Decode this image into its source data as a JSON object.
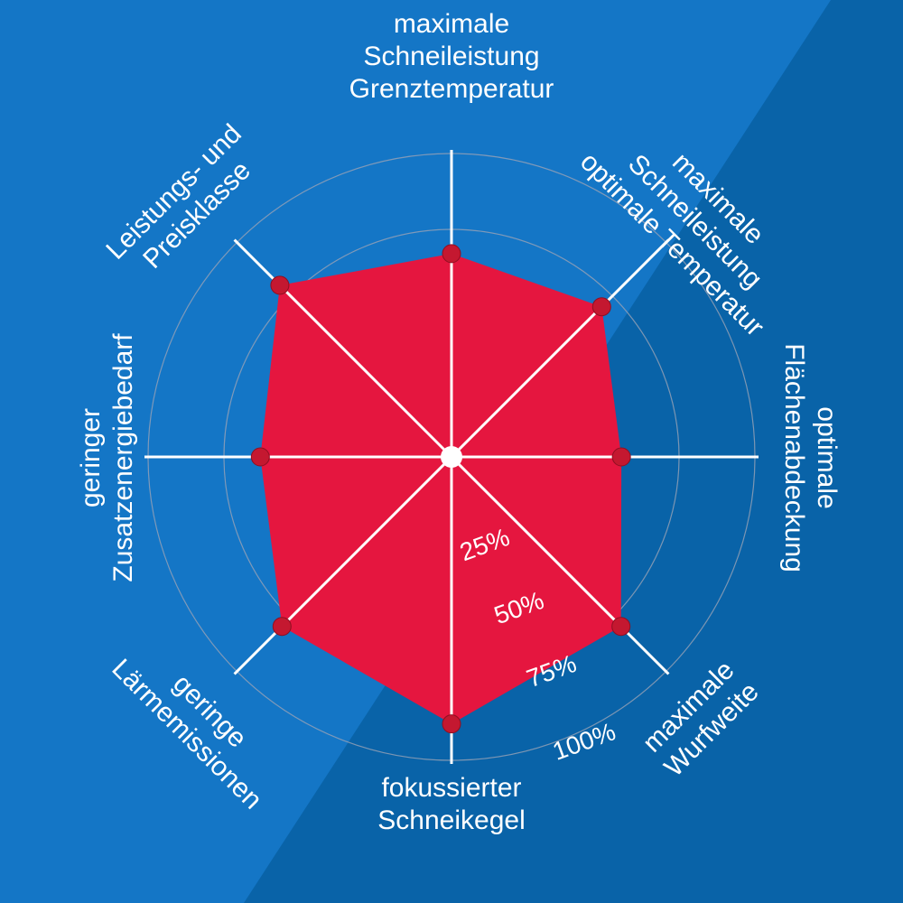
{
  "colors": {
    "background_light": "#1476c6",
    "background_dark": "#0963a8",
    "area_fill": "#e5163f",
    "point_fill": "#c41830",
    "spoke": "#ffffff",
    "ring": "#9aa3b5",
    "text": "#ffffff"
  },
  "chart_data": {
    "type": "radar",
    "axes": [
      {
        "key": "a0",
        "lines": [
          "maximale",
          "Schneileistung",
          "Grenztemperatur"
        ]
      },
      {
        "key": "a1",
        "lines": [
          "maximale",
          "Schneileistung",
          "optimale Temperatur"
        ]
      },
      {
        "key": "a2",
        "lines": [
          "optimale",
          "Flächenabdeckung"
        ]
      },
      {
        "key": "a3",
        "lines": [
          "maximale",
          "Wurfweite"
        ]
      },
      {
        "key": "a4",
        "lines": [
          "fokussierter",
          "Schneikegel"
        ]
      },
      {
        "key": "a5",
        "lines": [
          "geringe",
          "Lärmemissionen"
        ]
      },
      {
        "key": "a6",
        "lines": [
          "geringer",
          "Zusatzenergiebedarf"
        ]
      },
      {
        "key": "a7",
        "lines": [
          "Leistungs- und",
          "Preisklasse"
        ]
      }
    ],
    "values": [
      67,
      70,
      56,
      79,
      88,
      79,
      63,
      80
    ],
    "ring_levels": [
      25,
      50,
      75,
      100
    ],
    "ring_labels": [
      "25%",
      "50%",
      "75%",
      "100%"
    ],
    "range": [
      0,
      100
    ]
  }
}
